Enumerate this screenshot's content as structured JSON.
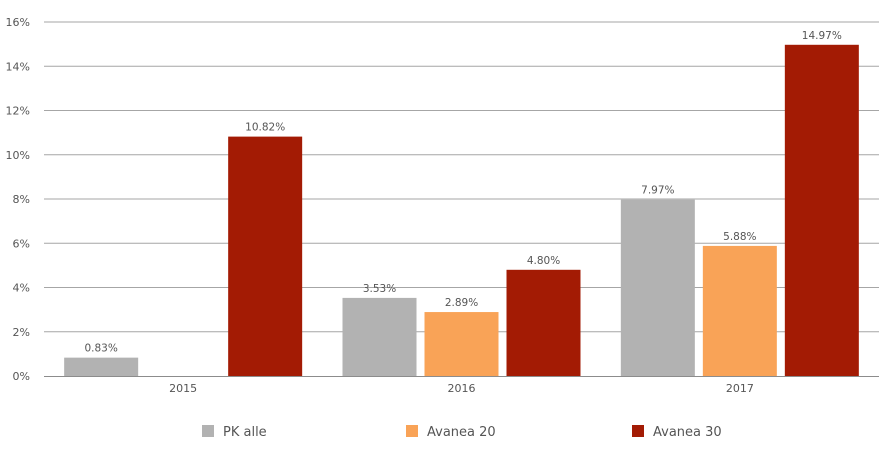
{
  "chart_data": {
    "type": "bar",
    "title": "",
    "xlabel": "",
    "ylabel": "",
    "categories": [
      "2015",
      "2016",
      "2017"
    ],
    "ylim": [
      0,
      16
    ],
    "y_ticks": [
      "0%",
      "2%",
      "4%",
      "6%",
      "8%",
      "10%",
      "12%",
      "14%",
      "16%"
    ],
    "grid": true,
    "legend_position": "bottom",
    "series": [
      {
        "name": "PK alle",
        "color": "#b2b2b2",
        "values": [
          0.83,
          3.53,
          7.97
        ],
        "labels": [
          "0.83%",
          "3.53%",
          "7.97%"
        ]
      },
      {
        "name": "Avanea 20",
        "color": "#f9a357",
        "values": [
          null,
          2.89,
          5.88
        ],
        "labels": [
          "",
          "2.89%",
          "5.88%"
        ]
      },
      {
        "name": "Avanea 30",
        "color": "#a31b04",
        "values": [
          10.82,
          4.8,
          14.97
        ],
        "labels": [
          "10.82%",
          "4.80%",
          "14.97%"
        ]
      }
    ]
  }
}
